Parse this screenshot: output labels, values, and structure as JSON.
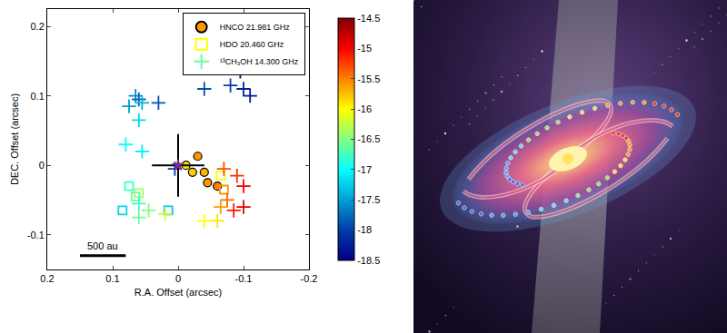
{
  "chart_data": {
    "type": "scatter",
    "xlabel": "R.A. Offset (arcsec)",
    "ylabel": "DEC. Offset (arcsec)",
    "xlim": [
      0.2,
      -0.2
    ],
    "xticks": [
      0.2,
      0.1,
      0,
      -0.1,
      -0.2
    ],
    "ylim": [
      -0.15,
      0.225
    ],
    "yticks": [
      -0.1,
      0,
      0.1,
      0.2
    ],
    "grid": false,
    "legend": "top right",
    "colorbar": {
      "lim": [
        -18.5,
        -14.5
      ],
      "ticks": [
        -14.5,
        -15,
        -15.5,
        -16,
        -16.5,
        -17,
        -17.5,
        -18,
        -18.5
      ]
    },
    "series": [
      {
        "name": "HNCO 21.981 GHz",
        "marker": "circle",
        "x": [
          -0.03,
          -0.012,
          -0.022,
          -0.04,
          -0.045,
          -0.06
        ],
        "y": [
          0.013,
          0.0,
          -0.01,
          -0.01,
          -0.025,
          -0.03
        ],
        "velocity": [
          -15.6,
          -15.9,
          -15.8,
          -15.7,
          -15.6,
          -15.5
        ]
      },
      {
        "name": "HDO 20.460 GHz",
        "marker": "square-open",
        "x": [
          -0.065,
          -0.07,
          0.075,
          0.065,
          0.06,
          0.085,
          0.015
        ],
        "y": [
          -0.015,
          -0.035,
          -0.03,
          -0.045,
          -0.04,
          -0.065,
          -0.065
        ],
        "velocity": [
          -16.0,
          -15.6,
          -16.8,
          -16.6,
          -16.4,
          -17.2,
          -17.3
        ]
      },
      {
        "name": "¹³CH₃OH 14.300 GHz",
        "marker": "cross",
        "x": [
          0.06,
          0.065,
          0.06,
          0.055,
          0.03,
          0.075,
          -0.04,
          -0.08,
          -0.1,
          -0.11,
          -0.095,
          0.06,
          0.08,
          0.055,
          -0.07,
          -0.09,
          -0.1,
          -0.1,
          -0.085,
          -0.075,
          -0.065,
          -0.06,
          -0.04,
          0.06,
          0.045,
          0.02,
          0.005
        ],
        "y": [
          -0.075,
          0.1,
          0.095,
          0.09,
          0.09,
          0.085,
          0.11,
          0.115,
          0.11,
          0.1,
          0.135,
          0.065,
          0.03,
          0.02,
          -0.005,
          -0.015,
          -0.03,
          -0.06,
          -0.065,
          -0.05,
          -0.06,
          -0.08,
          -0.08,
          -0.055,
          -0.065,
          -0.07,
          -0.005
        ],
        "velocity": [
          -16.6,
          -17.6,
          -17.8,
          -17.4,
          -17.9,
          -17.5,
          -17.9,
          -18.0,
          -18.2,
          -18.3,
          -18.4,
          -17.2,
          -17.0,
          -17.1,
          -15.3,
          -15.2,
          -15.0,
          -14.9,
          -15.1,
          -15.4,
          -15.6,
          -15.9,
          -16.0,
          -16.8,
          -16.5,
          -16.2,
          -18.0
        ]
      }
    ],
    "reference": {
      "x": 0,
      "y": 0,
      "x_error": 0.04,
      "y_error": 0.045,
      "marker": "star",
      "color": "#7a2a8c"
    },
    "scale_bar": {
      "label": "500 au",
      "x": [
        0.15,
        0.08
      ],
      "y": -0.13
    }
  }
}
